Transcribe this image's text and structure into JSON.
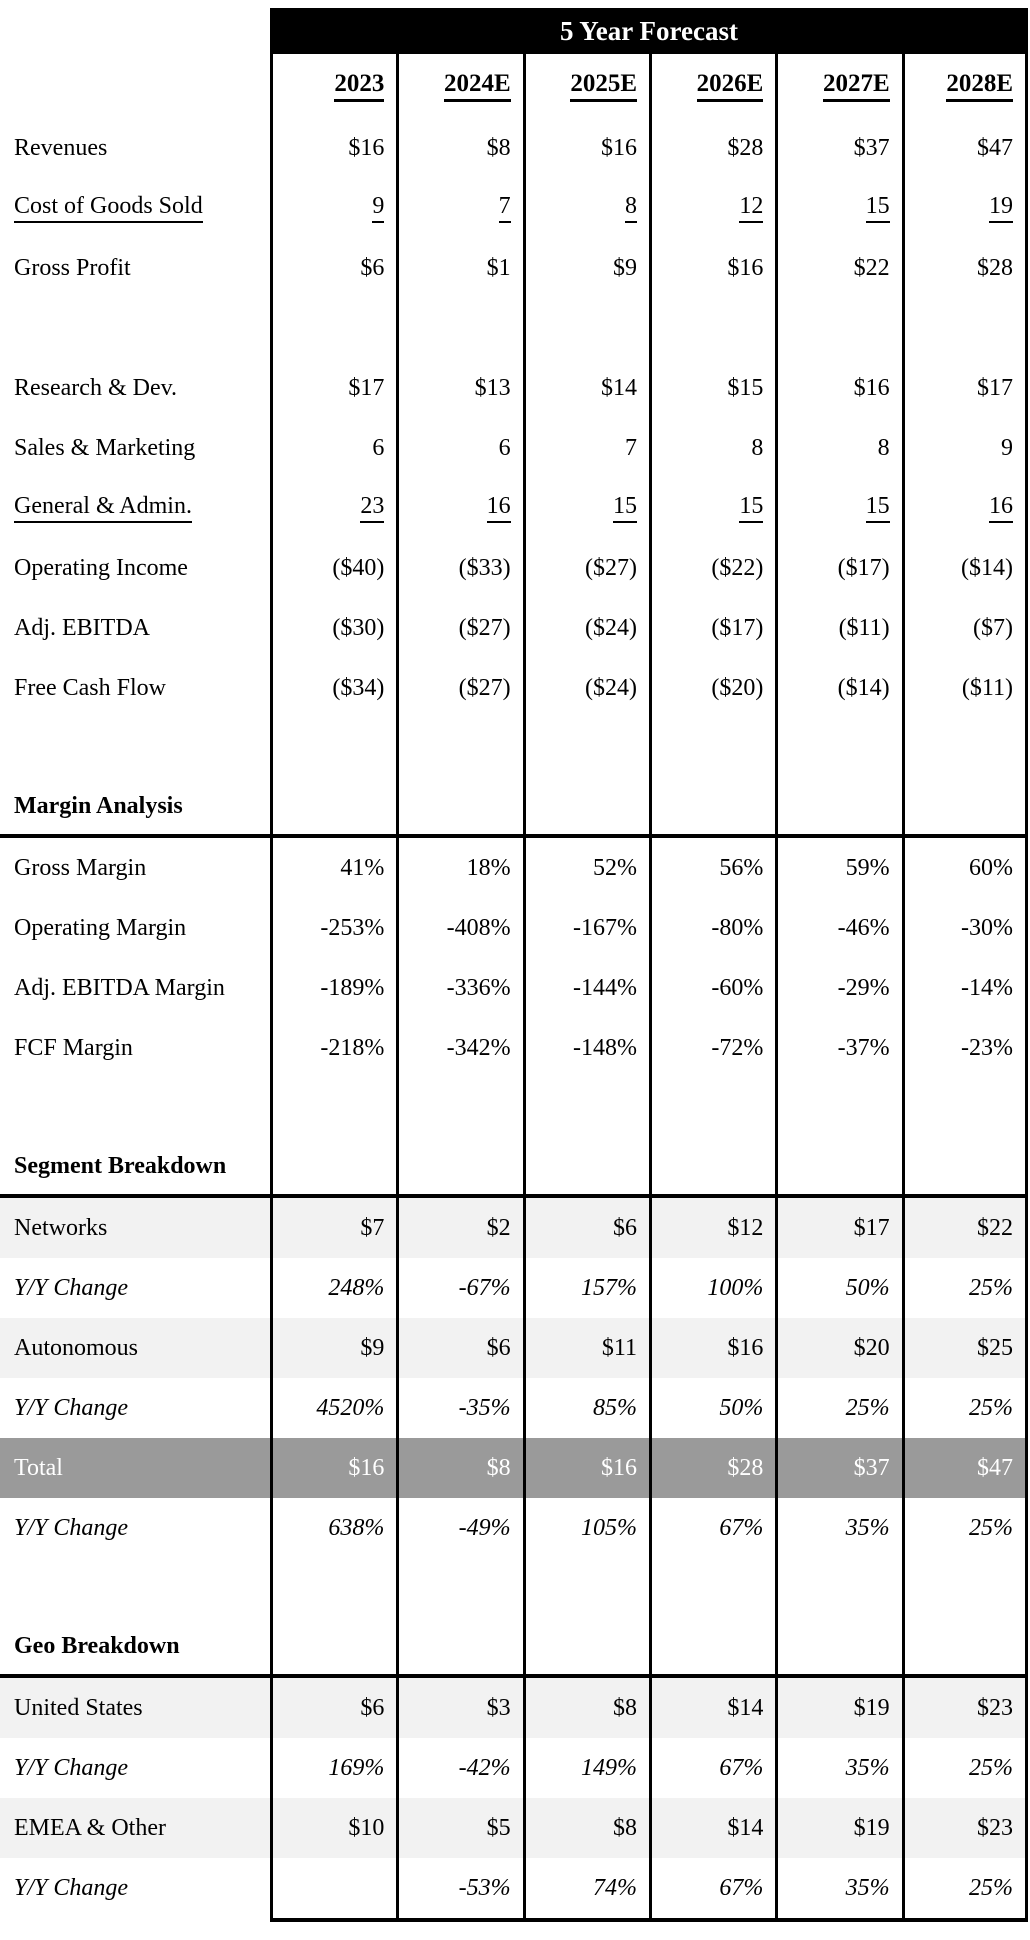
{
  "document": {
    "title": "5 Year Forecast",
    "columns": [
      "2023",
      "2024E",
      "2025E",
      "2026E",
      "2027E",
      "2028E"
    ],
    "colors": {
      "title_bg": "#000000",
      "title_text": "#ffffff",
      "band_light_gray": "#f2f2f2",
      "total_row_bg": "#9a9a9a",
      "total_row_text": "#ffffff",
      "border": "#000000"
    },
    "rows": [
      {
        "style": "plain",
        "label": "Revenues",
        "values": [
          "$16",
          "$8",
          "$16",
          "$28",
          "$37",
          "$47"
        ]
      },
      {
        "style": "underline",
        "label": "Cost of Goods Sold",
        "values": [
          "9",
          "7",
          "8",
          "12",
          "15",
          "19"
        ]
      },
      {
        "style": "plain",
        "label": "Gross Profit",
        "values": [
          "$6",
          "$1",
          "$9",
          "$16",
          "$22",
          "$28"
        ]
      },
      {
        "style": "blank",
        "label": "",
        "values": [
          "",
          "",
          "",
          "",
          "",
          ""
        ]
      },
      {
        "style": "plain",
        "label": "Research & Dev.",
        "values": [
          "$17",
          "$13",
          "$14",
          "$15",
          "$16",
          "$17"
        ]
      },
      {
        "style": "plain",
        "label": "Sales & Marketing",
        "values": [
          "6",
          "6",
          "7",
          "8",
          "8",
          "9"
        ]
      },
      {
        "style": "underline",
        "label": "General & Admin.",
        "values": [
          "23",
          "16",
          "15",
          "15",
          "15",
          "16"
        ]
      },
      {
        "style": "plain",
        "label": "Operating Income",
        "values": [
          "($40)",
          "($33)",
          "($27)",
          "($22)",
          "($17)",
          "($14)"
        ]
      },
      {
        "style": "plain",
        "label": "Adj. EBITDA",
        "values": [
          "($30)",
          "($27)",
          "($24)",
          "($17)",
          "($11)",
          "($7)"
        ]
      },
      {
        "style": "plain",
        "label": "Free Cash Flow",
        "values": [
          "($34)",
          "($27)",
          "($24)",
          "($20)",
          "($14)",
          "($11)"
        ]
      },
      {
        "style": "blank",
        "label": "",
        "values": [
          "",
          "",
          "",
          "",
          "",
          ""
        ]
      },
      {
        "style": "section",
        "label": "Margin Analysis",
        "values": [
          "",
          "",
          "",
          "",
          "",
          ""
        ]
      },
      {
        "style": "plain",
        "label": "Gross Margin",
        "values": [
          "41%",
          "18%",
          "52%",
          "56%",
          "59%",
          "60%"
        ]
      },
      {
        "style": "plain",
        "label": "Operating Margin",
        "values": [
          "-253%",
          "-408%",
          "-167%",
          "-80%",
          "-46%",
          "-30%"
        ]
      },
      {
        "style": "plain",
        "label": "Adj. EBITDA Margin",
        "values": [
          "-189%",
          "-336%",
          "-144%",
          "-60%",
          "-29%",
          "-14%"
        ]
      },
      {
        "style": "plain",
        "label": "FCF Margin",
        "values": [
          "-218%",
          "-342%",
          "-148%",
          "-72%",
          "-37%",
          "-23%"
        ]
      },
      {
        "style": "blank",
        "label": "",
        "values": [
          "",
          "",
          "",
          "",
          "",
          ""
        ]
      },
      {
        "style": "section",
        "label": "Segment Breakdown",
        "values": [
          "",
          "",
          "",
          "",
          "",
          ""
        ]
      },
      {
        "style": "gray",
        "label": "Networks",
        "values": [
          "$7",
          "$2",
          "$6",
          "$12",
          "$17",
          "$22"
        ]
      },
      {
        "style": "italic",
        "label": "Y/Y Change",
        "values": [
          "248%",
          "-67%",
          "157%",
          "100%",
          "50%",
          "25%"
        ]
      },
      {
        "style": "gray",
        "label": "Autonomous",
        "values": [
          "$9",
          "$6",
          "$11",
          "$16",
          "$20",
          "$25"
        ]
      },
      {
        "style": "italic",
        "label": "Y/Y Change",
        "values": [
          "4520%",
          "-35%",
          "85%",
          "50%",
          "25%",
          "25%"
        ]
      },
      {
        "style": "total",
        "label": "Total",
        "values": [
          "$16",
          "$8",
          "$16",
          "$28",
          "$37",
          "$47"
        ]
      },
      {
        "style": "italic",
        "label": "Y/Y Change",
        "values": [
          "638%",
          "-49%",
          "105%",
          "67%",
          "35%",
          "25%"
        ]
      },
      {
        "style": "blank",
        "label": "",
        "values": [
          "",
          "",
          "",
          "",
          "",
          ""
        ]
      },
      {
        "style": "section",
        "label": "Geo Breakdown",
        "values": [
          "",
          "",
          "",
          "",
          "",
          ""
        ]
      },
      {
        "style": "gray",
        "label": "United States",
        "values": [
          "$6",
          "$3",
          "$8",
          "$14",
          "$19",
          "$23"
        ]
      },
      {
        "style": "italic",
        "label": "Y/Y Change",
        "values": [
          "169%",
          "-42%",
          "149%",
          "67%",
          "35%",
          "25%"
        ]
      },
      {
        "style": "gray",
        "label": "EMEA & Other",
        "values": [
          "$10",
          "$5",
          "$8",
          "$14",
          "$19",
          "$23"
        ]
      },
      {
        "style": "italic",
        "label": "Y/Y Change",
        "values": [
          "",
          "-53%",
          "74%",
          "67%",
          "35%",
          "25%"
        ]
      }
    ]
  }
}
